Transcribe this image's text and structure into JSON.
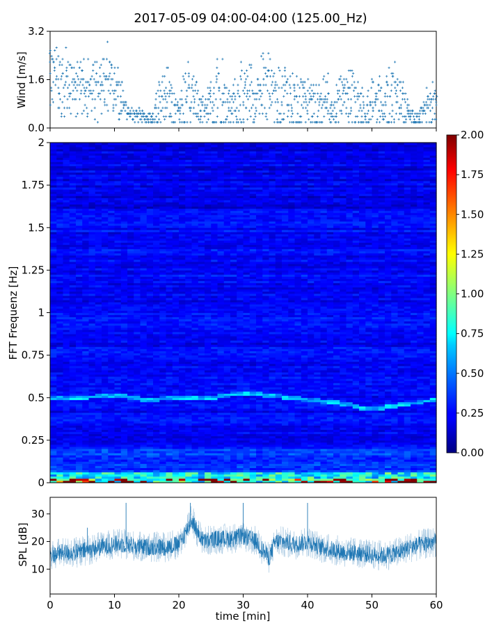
{
  "title": "2017-05-09 04:00-04:00 (125.00_Hz)",
  "chart_data": [
    {
      "type": "scatter",
      "panel": "wind",
      "ylabel": "Wind [m/s]",
      "ylim": [
        0.0,
        3.2
      ],
      "yticks": [
        "0.0",
        "1.6",
        "3.2"
      ],
      "xlim": [
        0,
        60
      ],
      "color": "#1f77b4",
      "marker": "+",
      "x_min": [
        0,
        1,
        2,
        3,
        4,
        5,
        6,
        7,
        8,
        9,
        10,
        11,
        12,
        13,
        14,
        15,
        16,
        17,
        18,
        19,
        20,
        21,
        22,
        23,
        24,
        25,
        26,
        27,
        28,
        29,
        30,
        31,
        32,
        33,
        34,
        35,
        36,
        37,
        38,
        39,
        40,
        41,
        42,
        43,
        44,
        45,
        46,
        47,
        48,
        49,
        50,
        51,
        52,
        53,
        54,
        55,
        56,
        57,
        58,
        59,
        60
      ],
      "wind_typical": [
        1.5,
        1.6,
        1.4,
        1.3,
        1.2,
        1.1,
        1.2,
        1.1,
        1.0,
        1.3,
        1.2,
        0.9,
        0.5,
        0.4,
        0.4,
        0.3,
        0.3,
        0.9,
        1.0,
        0.8,
        0.4,
        0.8,
        1.0,
        0.6,
        0.5,
        0.6,
        0.9,
        0.7,
        0.5,
        0.6,
        1.0,
        0.8,
        0.6,
        1.3,
        1.1,
        0.8,
        0.7,
        0.8,
        0.6,
        0.8,
        0.7,
        0.5,
        0.5,
        0.8,
        0.4,
        0.9,
        1.0,
        0.8,
        0.6,
        0.5,
        0.8,
        0.9,
        0.8,
        0.9,
        0.8,
        0.7,
        0.4,
        0.3,
        0.4,
        0.6,
        0.7
      ],
      "wind_peak": [
        3.1,
        2.9,
        3.0,
        2.6,
        2.5,
        2.3,
        2.4,
        2.2,
        2.3,
        2.9,
        2.1,
        1.9,
        0.7,
        0.6,
        0.6,
        0.5,
        0.5,
        2.2,
        2.2,
        1.8,
        0.7,
        2.3,
        2.3,
        1.6,
        1.0,
        1.7,
        2.6,
        2.2,
        1.5,
        1.8,
        2.6,
        2.4,
        1.8,
        2.7,
        2.5,
        2.2,
        1.9,
        2.2,
        1.8,
        2.0,
        1.7,
        1.5,
        1.6,
        2.1,
        0.9,
        1.9,
        2.0,
        2.0,
        1.5,
        1.2,
        1.9,
        2.0,
        1.8,
        2.7,
        1.7,
        1.6,
        0.6,
        0.5,
        0.9,
        2.0,
        1.2
      ]
    },
    {
      "type": "heatmap",
      "panel": "spectrogram",
      "ylabel": "FFT Frequenz [Hz]",
      "ylim": [
        0,
        2
      ],
      "yticks": [
        "0",
        "0.25",
        "0.5",
        "0.75",
        "1",
        "1.25",
        "1.5",
        "1.75",
        "2"
      ],
      "xlim": [
        0,
        60
      ],
      "colormap": "jet",
      "colorbar": {
        "min": 0.0,
        "max": 2.0,
        "ticks": [
          "0.00",
          "0.25",
          "0.50",
          "0.75",
          "1.00",
          "1.25",
          "1.50",
          "1.75",
          "2.00"
        ]
      },
      "band_time_min": [
        0,
        5,
        10,
        15,
        20,
        25,
        30,
        35,
        40,
        45,
        50,
        55,
        60
      ],
      "band_freq_hz": [
        0.5,
        0.5,
        0.52,
        0.49,
        0.5,
        0.5,
        0.53,
        0.51,
        0.49,
        0.47,
        0.43,
        0.46,
        0.49
      ],
      "low_freq_energy_hz_below": 0.06,
      "background_level": 0.25
    },
    {
      "type": "line",
      "panel": "spl",
      "ylabel": "SPL [dB]",
      "xlabel": "time [min]",
      "ylim": [
        1,
        36
      ],
      "yticks": [
        "10",
        "20",
        "30"
      ],
      "xlim": [
        0,
        60
      ],
      "xticks": [
        "0",
        "10",
        "20",
        "30",
        "40",
        "50",
        "60"
      ],
      "color": "#1f77b4",
      "x_min": [
        0,
        2,
        4,
        6,
        8,
        10,
        12,
        14,
        16,
        18,
        20,
        21,
        22,
        23,
        24,
        26,
        28,
        30,
        32,
        33,
        34,
        35,
        36,
        38,
        40,
        42,
        44,
        46,
        48,
        50,
        52,
        54,
        56,
        58,
        60
      ],
      "spl_mean": [
        15,
        16,
        16,
        17,
        18,
        19,
        19,
        18,
        18,
        18,
        19,
        23,
        28,
        23,
        20,
        21,
        21,
        22,
        20,
        17,
        14,
        20,
        20,
        19,
        20,
        18,
        17,
        16,
        16,
        15,
        15,
        16,
        18,
        19,
        20
      ],
      "spl_band": [
        4,
        4,
        4,
        4,
        4,
        4,
        4,
        4,
        4,
        4,
        4,
        4,
        4,
        4,
        4,
        4,
        4,
        4,
        4,
        4,
        4,
        4,
        4,
        4,
        4,
        4,
        4,
        4,
        4,
        4,
        4,
        4,
        4,
        4,
        4
      ],
      "spikes": [
        [
          5.8,
          25
        ],
        [
          11.8,
          34
        ],
        [
          21.8,
          34
        ],
        [
          30.0,
          34
        ],
        [
          40.0,
          34
        ]
      ]
    }
  ]
}
